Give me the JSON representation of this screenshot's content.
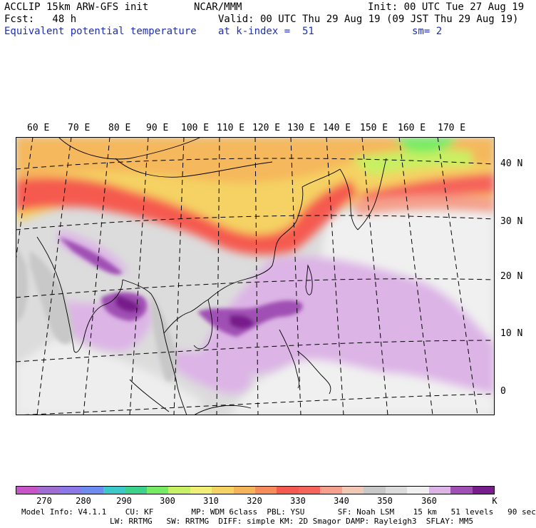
{
  "header": {
    "line1_left": "ACCLIP 15km ARW-GFS init",
    "line1_center": "NCAR/MMM",
    "line1_right": "Init: 00 UTC Tue 27 Aug 19",
    "line2_left": "Fcst:   48 h",
    "line2_right": "Valid: 00 UTC Thu 29 Aug 19 (09 JST Thu 29 Aug 19)",
    "line3_left": "Equivalent potential temperature",
    "line3_center": "at k-index =  51",
    "line3_right": "sm= 2"
  },
  "map": {
    "lon_labels": [
      "60 E",
      "70 E",
      "80 E",
      "90 E",
      "100 E",
      "110 E",
      "120 E",
      "130 E",
      "140 E",
      "150 E",
      "160 E",
      "170 E"
    ],
    "lat_labels": [
      "40 N",
      "30 N",
      "20 N",
      "10 N",
      "0"
    ]
  },
  "colorbar": {
    "colors": [
      "#c855c8",
      "#a06ed2",
      "#8c78e6",
      "#6e8cf0",
      "#3cc8c8",
      "#3cd28c",
      "#78eb64",
      "#c8f064",
      "#f0f078",
      "#f5d264",
      "#f5b45a",
      "#f58c5a",
      "#f55a50",
      "#f5645a",
      "#f5a08c",
      "#f0c8b4",
      "#c8c8c8",
      "#dcdcdc",
      "#f0f0f0",
      "#dcb4e6",
      "#a050b4",
      "#781e8c"
    ],
    "tick_labels": [
      "270",
      "280",
      "290",
      "300",
      "310",
      "320",
      "330",
      "340",
      "350",
      "360"
    ],
    "unit": "K"
  },
  "footer": {
    "line1": "Model Info: V4.1.1    CU: KF        MP: WDM 6class  PBL: YSU       SF: Noah LSM    15 km   51 levels   90 sec",
    "line2": "LW: RRTMG   SW: RRTMG  DIFF: simple KM: 2D Smagor DAMP: Rayleigh3  SFLAY: MM5"
  }
}
